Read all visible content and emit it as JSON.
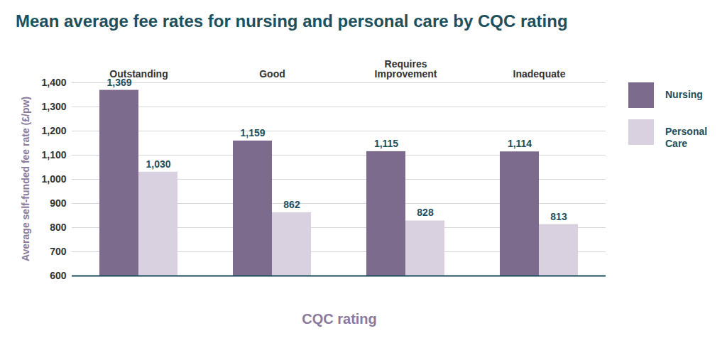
{
  "chart_data": {
    "type": "bar",
    "title": "Mean average fee rates for nursing and personal care by CQC rating",
    "x_label": "CQC rating",
    "y_label": "Average self-funded fee rate (£/pw)",
    "categories": [
      "Outstanding",
      "Good",
      "Requires Improvement",
      "Inadequate"
    ],
    "series": [
      {
        "name": "Nursing",
        "color": "#7d6b8e",
        "values": [
          1369,
          1159,
          1115,
          1114
        ],
        "value_labels": [
          "1,369",
          "1,159",
          "1,115",
          "1,114"
        ]
      },
      {
        "name": "Personal Care",
        "color": "#d9d1e0",
        "values": [
          1030,
          862,
          828,
          813
        ],
        "value_labels": [
          "1,030",
          "862",
          "828",
          "813"
        ]
      }
    ],
    "ylim": [
      600,
      1400
    ],
    "yticks": [
      600,
      700,
      800,
      900,
      {
        "value": 1000,
        "label": "1,000"
      },
      {
        "value": 1100,
        "label": "1,100"
      },
      {
        "value": 1200,
        "label": "1,200"
      },
      {
        "value": 1300,
        "label": "1,300"
      },
      {
        "value": 1400,
        "label": "1,400"
      }
    ],
    "grid": true,
    "legend": "right",
    "data_labels": true
  }
}
